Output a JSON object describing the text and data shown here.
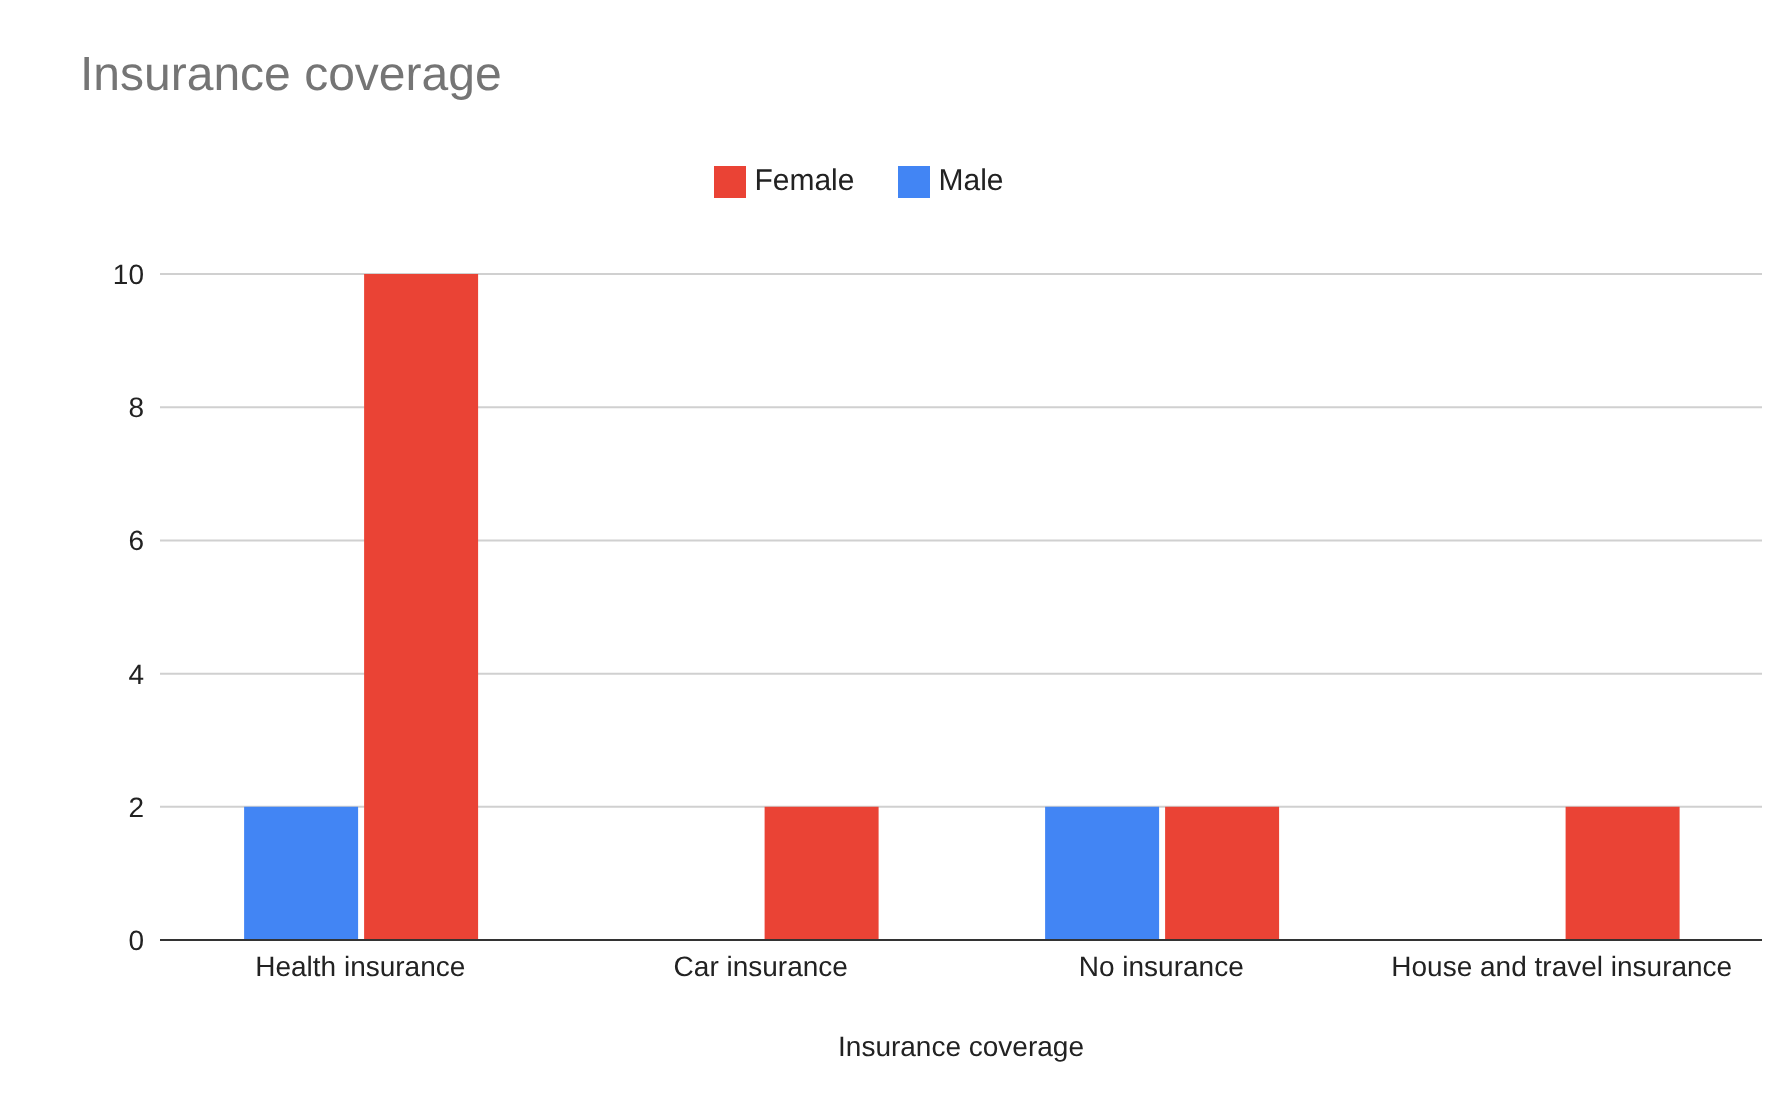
{
  "chart_data": {
    "type": "bar",
    "title": "Insurance coverage",
    "xlabel": "Insurance coverage",
    "categories": [
      "Health insurance",
      "Car insurance",
      "No insurance",
      "House and travel insurance"
    ],
    "series": [
      {
        "name": "Male",
        "color": "#4285f4",
        "values": [
          2,
          null,
          2,
          null
        ]
      },
      {
        "name": "Female",
        "color": "#ea4335",
        "values": [
          10,
          2,
          2,
          2
        ]
      }
    ],
    "ylim": [
      0,
      10
    ],
    "yticks": [
      0,
      2,
      4,
      6,
      8,
      10
    ],
    "grid": "y",
    "legend": "top"
  }
}
